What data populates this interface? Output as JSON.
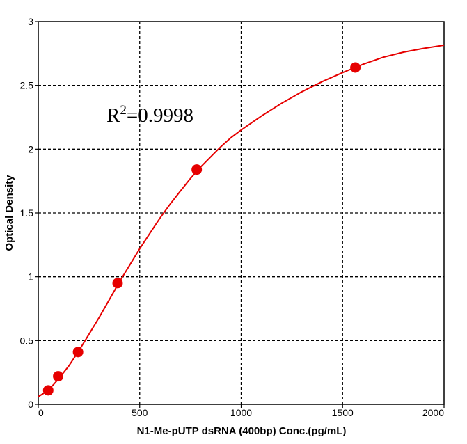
{
  "chart_data": {
    "type": "scatter",
    "title": "",
    "xlabel": "N1-Me-pUTP dsRNA (400bp) Conc.(pg/mL)",
    "ylabel": "Optical Density",
    "xlim": [
      0,
      2000
    ],
    "ylim": [
      0,
      3
    ],
    "x_ticks": [
      0,
      500,
      1000,
      1500,
      2000
    ],
    "y_ticks": [
      0,
      0.5,
      1,
      1.5,
      2,
      2.5,
      3
    ],
    "x_tick_labels": [
      "0",
      "500",
      "1000",
      "1500",
      "2000"
    ],
    "y_tick_labels": [
      "0",
      "0.5",
      "1",
      "1.5",
      "2",
      "2.5",
      "3"
    ],
    "grid": true,
    "annotation": {
      "text_base": "R",
      "text_sup": "2",
      "text_rest": "=0.9998"
    },
    "series": [
      {
        "points": [
          {
            "x": 49,
            "y": 0.11
          },
          {
            "x": 98,
            "y": 0.22
          },
          {
            "x": 196,
            "y": 0.41
          },
          {
            "x": 391,
            "y": 0.95
          },
          {
            "x": 781,
            "y": 1.84
          },
          {
            "x": 1563,
            "y": 2.64
          }
        ],
        "fit_curve": [
          [
            0,
            0.06
          ],
          [
            25,
            0.085
          ],
          [
            50,
            0.115
          ],
          [
            75,
            0.155
          ],
          [
            100,
            0.2
          ],
          [
            150,
            0.3
          ],
          [
            200,
            0.42
          ],
          [
            250,
            0.55
          ],
          [
            300,
            0.68
          ],
          [
            350,
            0.82
          ],
          [
            400,
            0.96
          ],
          [
            450,
            1.09
          ],
          [
            500,
            1.22
          ],
          [
            550,
            1.34
          ],
          [
            600,
            1.46
          ],
          [
            650,
            1.57
          ],
          [
            700,
            1.67
          ],
          [
            750,
            1.77
          ],
          [
            800,
            1.86
          ],
          [
            850,
            1.94
          ],
          [
            900,
            2.02
          ],
          [
            950,
            2.09
          ],
          [
            1000,
            2.15
          ],
          [
            1100,
            2.26
          ],
          [
            1200,
            2.36
          ],
          [
            1300,
            2.45
          ],
          [
            1400,
            2.53
          ],
          [
            1500,
            2.6
          ],
          [
            1600,
            2.665
          ],
          [
            1700,
            2.72
          ],
          [
            1800,
            2.76
          ],
          [
            1900,
            2.79
          ],
          [
            2000,
            2.815
          ]
        ]
      }
    ]
  },
  "colors": {
    "series": "#e60000",
    "grid": "#000000",
    "axis": "#000000",
    "background": "#ffffff"
  }
}
